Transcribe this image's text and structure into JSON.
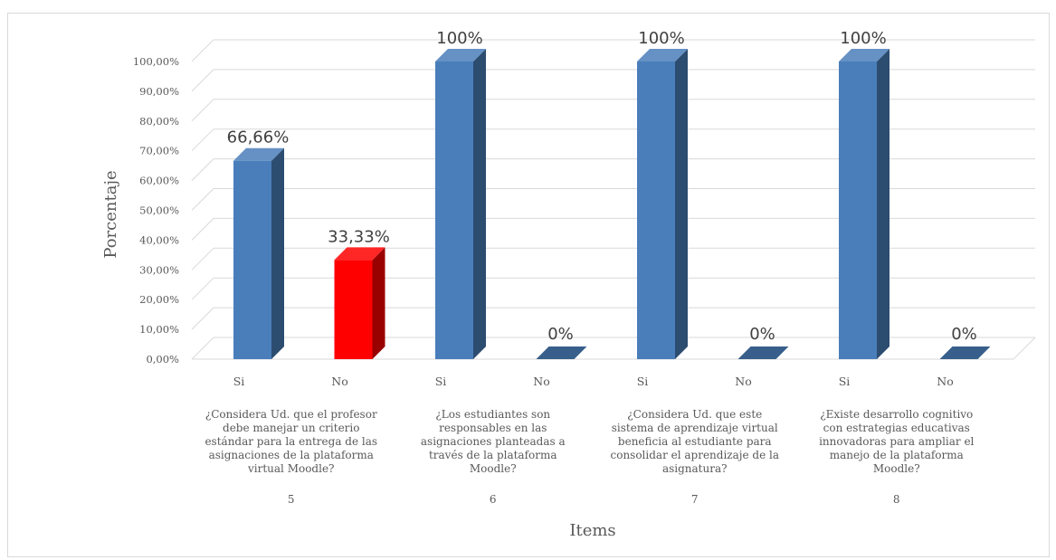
{
  "chart_data": {
    "type": "bar",
    "title": "",
    "xlabel": "Items",
    "ylabel": "Porcentaje",
    "ylim": [
      0,
      100
    ],
    "yticks": [
      "0,00%",
      "10,00%",
      "20,00%",
      "30,00%",
      "40,00%",
      "50,00%",
      "60,00%",
      "70,00%",
      "80,00%",
      "90,00%",
      "100,00%"
    ],
    "grid": true,
    "style": "3d-column",
    "colors": {
      "si": "#4a7ebb",
      "no_highlight": "#ff0000",
      "grid": "#d9d9d9",
      "text": "#595959"
    },
    "groups": [
      {
        "item": "5",
        "question": [
          "¿Considera Ud. que el profesor",
          "debe manejar un criterio",
          "estándar para la entrega de las",
          "asignaciones de la plataforma",
          "virtual Moodle?"
        ],
        "bars": [
          {
            "category": "Si",
            "value": 66.66,
            "label": "66,66%",
            "color": "#4a7ebb"
          },
          {
            "category": "No",
            "value": 33.33,
            "label": "33,33%",
            "color": "#ff0000"
          }
        ]
      },
      {
        "item": "6",
        "question": [
          "¿Los estudiantes son",
          "responsables en las",
          "asignaciones planteadas a",
          "través de la plataforma",
          "Moodle?"
        ],
        "bars": [
          {
            "category": "Si",
            "value": 100,
            "label": "100%",
            "color": "#4a7ebb"
          },
          {
            "category": "No",
            "value": 0,
            "label": "0%",
            "color": "#4a7ebb"
          }
        ]
      },
      {
        "item": "7",
        "question": [
          "¿Considera Ud. que este",
          "sistema de aprendizaje virtual",
          "beneficia al estudiante para",
          "consolidar el aprendizaje de la",
          "asignatura?"
        ],
        "bars": [
          {
            "category": "Si",
            "value": 100,
            "label": "100%",
            "color": "#4a7ebb"
          },
          {
            "category": "No",
            "value": 0,
            "label": "0%",
            "color": "#4a7ebb"
          }
        ]
      },
      {
        "item": "8",
        "question": [
          "¿Existe desarrollo cognitivo",
          "con estrategias educativas",
          "innovadoras para ampliar el",
          "manejo de la plataforma",
          "Moodle?"
        ],
        "bars": [
          {
            "category": "Si",
            "value": 100,
            "label": "100%",
            "color": "#4a7ebb"
          },
          {
            "category": "No",
            "value": 0,
            "label": "0%",
            "color": "#4a7ebb"
          }
        ]
      }
    ]
  }
}
